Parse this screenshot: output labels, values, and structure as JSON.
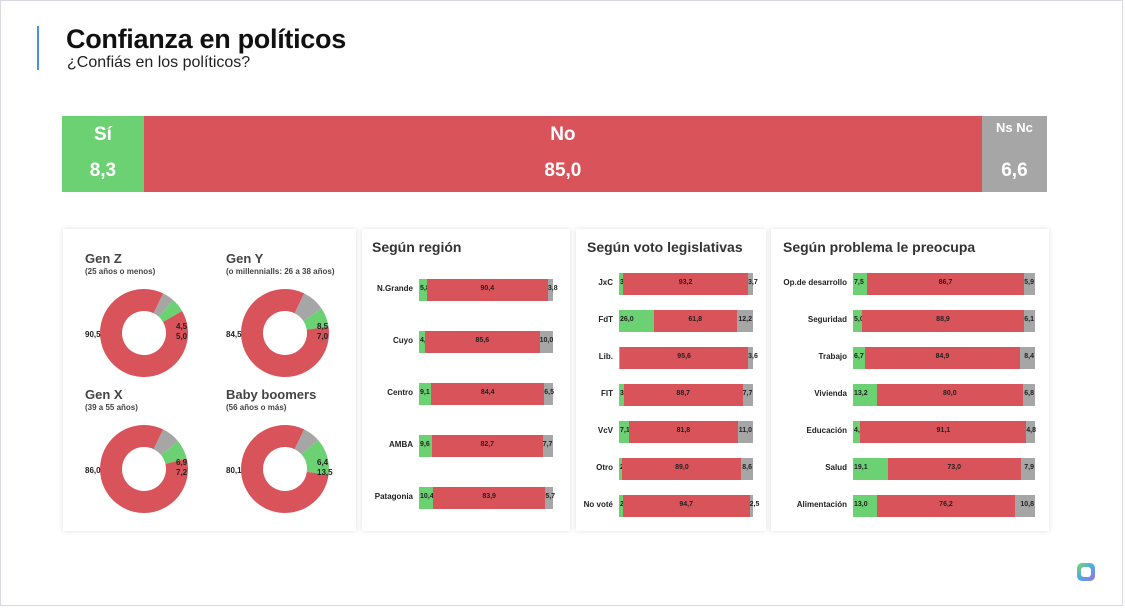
{
  "title": "Confianza en políticos",
  "subtitle": "¿Confiás en los políticos?",
  "colors": {
    "si": "#6cd173",
    "no": "#d9545a",
    "nsnc": "#a6a6a6"
  },
  "overall": [
    {
      "label": "Sí",
      "value": "8,3",
      "color": "#6cd173",
      "pct": 8.3
    },
    {
      "label": "No",
      "value": "85,0",
      "color": "#d9545a",
      "pct": 85.0
    },
    {
      "label": "Ns Nc",
      "value": "6,6",
      "color": "#a6a6a6",
      "pct": 6.6
    }
  ],
  "generations": [
    {
      "name": "Gen Z",
      "sub": "(25 años o menos)",
      "no": "90,5",
      "si": "5,0",
      "ns": "4,5"
    },
    {
      "name": "Gen Y",
      "sub": "(o millennialls: 26 a 38 años)",
      "no": "84,5",
      "si": "7,0",
      "ns": "8,5"
    },
    {
      "name": "Gen X",
      "sub": "(39 a 55 años)",
      "no": "86,0",
      "si": "7,2",
      "ns": "6,9"
    },
    {
      "name": "Baby boomers",
      "sub": "(56 años o más)",
      "no": "80,1",
      "si": "13,5",
      "ns": "6,4"
    }
  ],
  "region": {
    "title": "Según región",
    "rows": [
      {
        "label": "N.Grande",
        "si": "5,8",
        "no": "90,4",
        "ns": "3,8"
      },
      {
        "label": "Cuyo",
        "si": "4,5",
        "no": "85,6",
        "ns": "10,0"
      },
      {
        "label": "Centro",
        "si": "9,1",
        "no": "84,4",
        "ns": "6,5"
      },
      {
        "label": "AMBA",
        "si": "9,6",
        "no": "82,7",
        "ns": "7,7"
      },
      {
        "label": "Patagonia",
        "si": "10,4",
        "no": "83,9",
        "ns": "5,7"
      }
    ]
  },
  "voto": {
    "title": "Según voto legislativas",
    "rows": [
      {
        "label": "JxC",
        "si": "3,1",
        "no": "93,2",
        "ns": "3,7"
      },
      {
        "label": "FdT",
        "si": "26,0",
        "no": "61,8",
        "ns": "12,2"
      },
      {
        "label": "Lib.",
        "si": "0,8",
        "no": "95,6",
        "ns": "3,6"
      },
      {
        "label": "FIT",
        "si": "3,6",
        "no": "88,7",
        "ns": "7,7"
      },
      {
        "label": "VcV",
        "si": "7,1",
        "no": "81,8",
        "ns": "11,0"
      },
      {
        "label": "Otro",
        "si": "2,5",
        "no": "89,0",
        "ns": "8,6"
      },
      {
        "label": "No voté",
        "si": "2,8",
        "no": "94,7",
        "ns": "2,5"
      }
    ]
  },
  "problema": {
    "title": "Según problema le preocupa",
    "rows": [
      {
        "label": "Op.de desarrollo",
        "si": "7,5",
        "no": "86,7",
        "ns": "5,9"
      },
      {
        "label": "Seguridad",
        "si": "5,0",
        "no": "88,9",
        "ns": "6,1"
      },
      {
        "label": "Trabajo",
        "si": "6,7",
        "no": "84,9",
        "ns": "8,4"
      },
      {
        "label": "Vivienda",
        "si": "13,2",
        "no": "80,0",
        "ns": "6,8"
      },
      {
        "label": "Educación",
        "si": "4,1",
        "no": "91,1",
        "ns": "4,8"
      },
      {
        "label": "Salud",
        "si": "19,1",
        "no": "73,0",
        "ns": "7,9"
      },
      {
        "label": "Alimentación",
        "si": "13,0",
        "no": "76,2",
        "ns": "10,8"
      }
    ]
  },
  "chart_data": [
    {
      "type": "bar",
      "title": "Confianza en políticos",
      "categories": [
        "Sí",
        "No",
        "Ns Nc"
      ],
      "values": [
        8.3,
        85.0,
        6.6
      ]
    },
    {
      "type": "pie",
      "title": "Gen Z",
      "categories": [
        "No",
        "Sí",
        "Ns Nc"
      ],
      "values": [
        90.5,
        5.0,
        4.5
      ]
    },
    {
      "type": "pie",
      "title": "Gen Y",
      "categories": [
        "No",
        "Sí",
        "Ns Nc"
      ],
      "values": [
        84.5,
        7.0,
        8.5
      ]
    },
    {
      "type": "pie",
      "title": "Gen X",
      "categories": [
        "No",
        "Sí",
        "Ns Nc"
      ],
      "values": [
        86.0,
        7.2,
        6.9
      ]
    },
    {
      "type": "pie",
      "title": "Baby boomers",
      "categories": [
        "No",
        "Sí",
        "Ns Nc"
      ],
      "values": [
        80.1,
        13.5,
        6.4
      ]
    },
    {
      "type": "bar",
      "title": "Según región",
      "categories": [
        "N.Grande",
        "Cuyo",
        "Centro",
        "AMBA",
        "Patagonia"
      ],
      "series": [
        {
          "name": "Sí",
          "values": [
            5.8,
            4.5,
            9.1,
            9.6,
            10.4
          ]
        },
        {
          "name": "No",
          "values": [
            90.4,
            85.6,
            84.4,
            82.7,
            83.9
          ]
        },
        {
          "name": "Ns Nc",
          "values": [
            3.8,
            10.0,
            6.5,
            7.7,
            5.7
          ]
        }
      ]
    },
    {
      "type": "bar",
      "title": "Según voto legislativas",
      "categories": [
        "JxC",
        "FdT",
        "Lib.",
        "FIT",
        "VcV",
        "Otro",
        "No voté"
      ],
      "series": [
        {
          "name": "Sí",
          "values": [
            3.1,
            26.0,
            0.8,
            3.6,
            7.1,
            2.5,
            2.8
          ]
        },
        {
          "name": "No",
          "values": [
            93.2,
            61.8,
            95.6,
            88.7,
            81.8,
            89.0,
            94.7
          ]
        },
        {
          "name": "Ns Nc",
          "values": [
            3.7,
            12.2,
            3.6,
            7.7,
            11.0,
            8.6,
            2.5
          ]
        }
      ]
    },
    {
      "type": "bar",
      "title": "Según problema le preocupa",
      "categories": [
        "Op.de desarrollo",
        "Seguridad",
        "Trabajo",
        "Vivienda",
        "Educación",
        "Salud",
        "Alimentación"
      ],
      "series": [
        {
          "name": "Sí",
          "values": [
            7.5,
            5.0,
            6.7,
            13.2,
            4.1,
            19.1,
            13.0
          ]
        },
        {
          "name": "No",
          "values": [
            86.7,
            88.9,
            84.9,
            80.0,
            91.1,
            73.0,
            76.2
          ]
        },
        {
          "name": "Ns Nc",
          "values": [
            5.9,
            6.1,
            8.4,
            6.8,
            4.8,
            7.9,
            10.8
          ]
        }
      ]
    }
  ]
}
